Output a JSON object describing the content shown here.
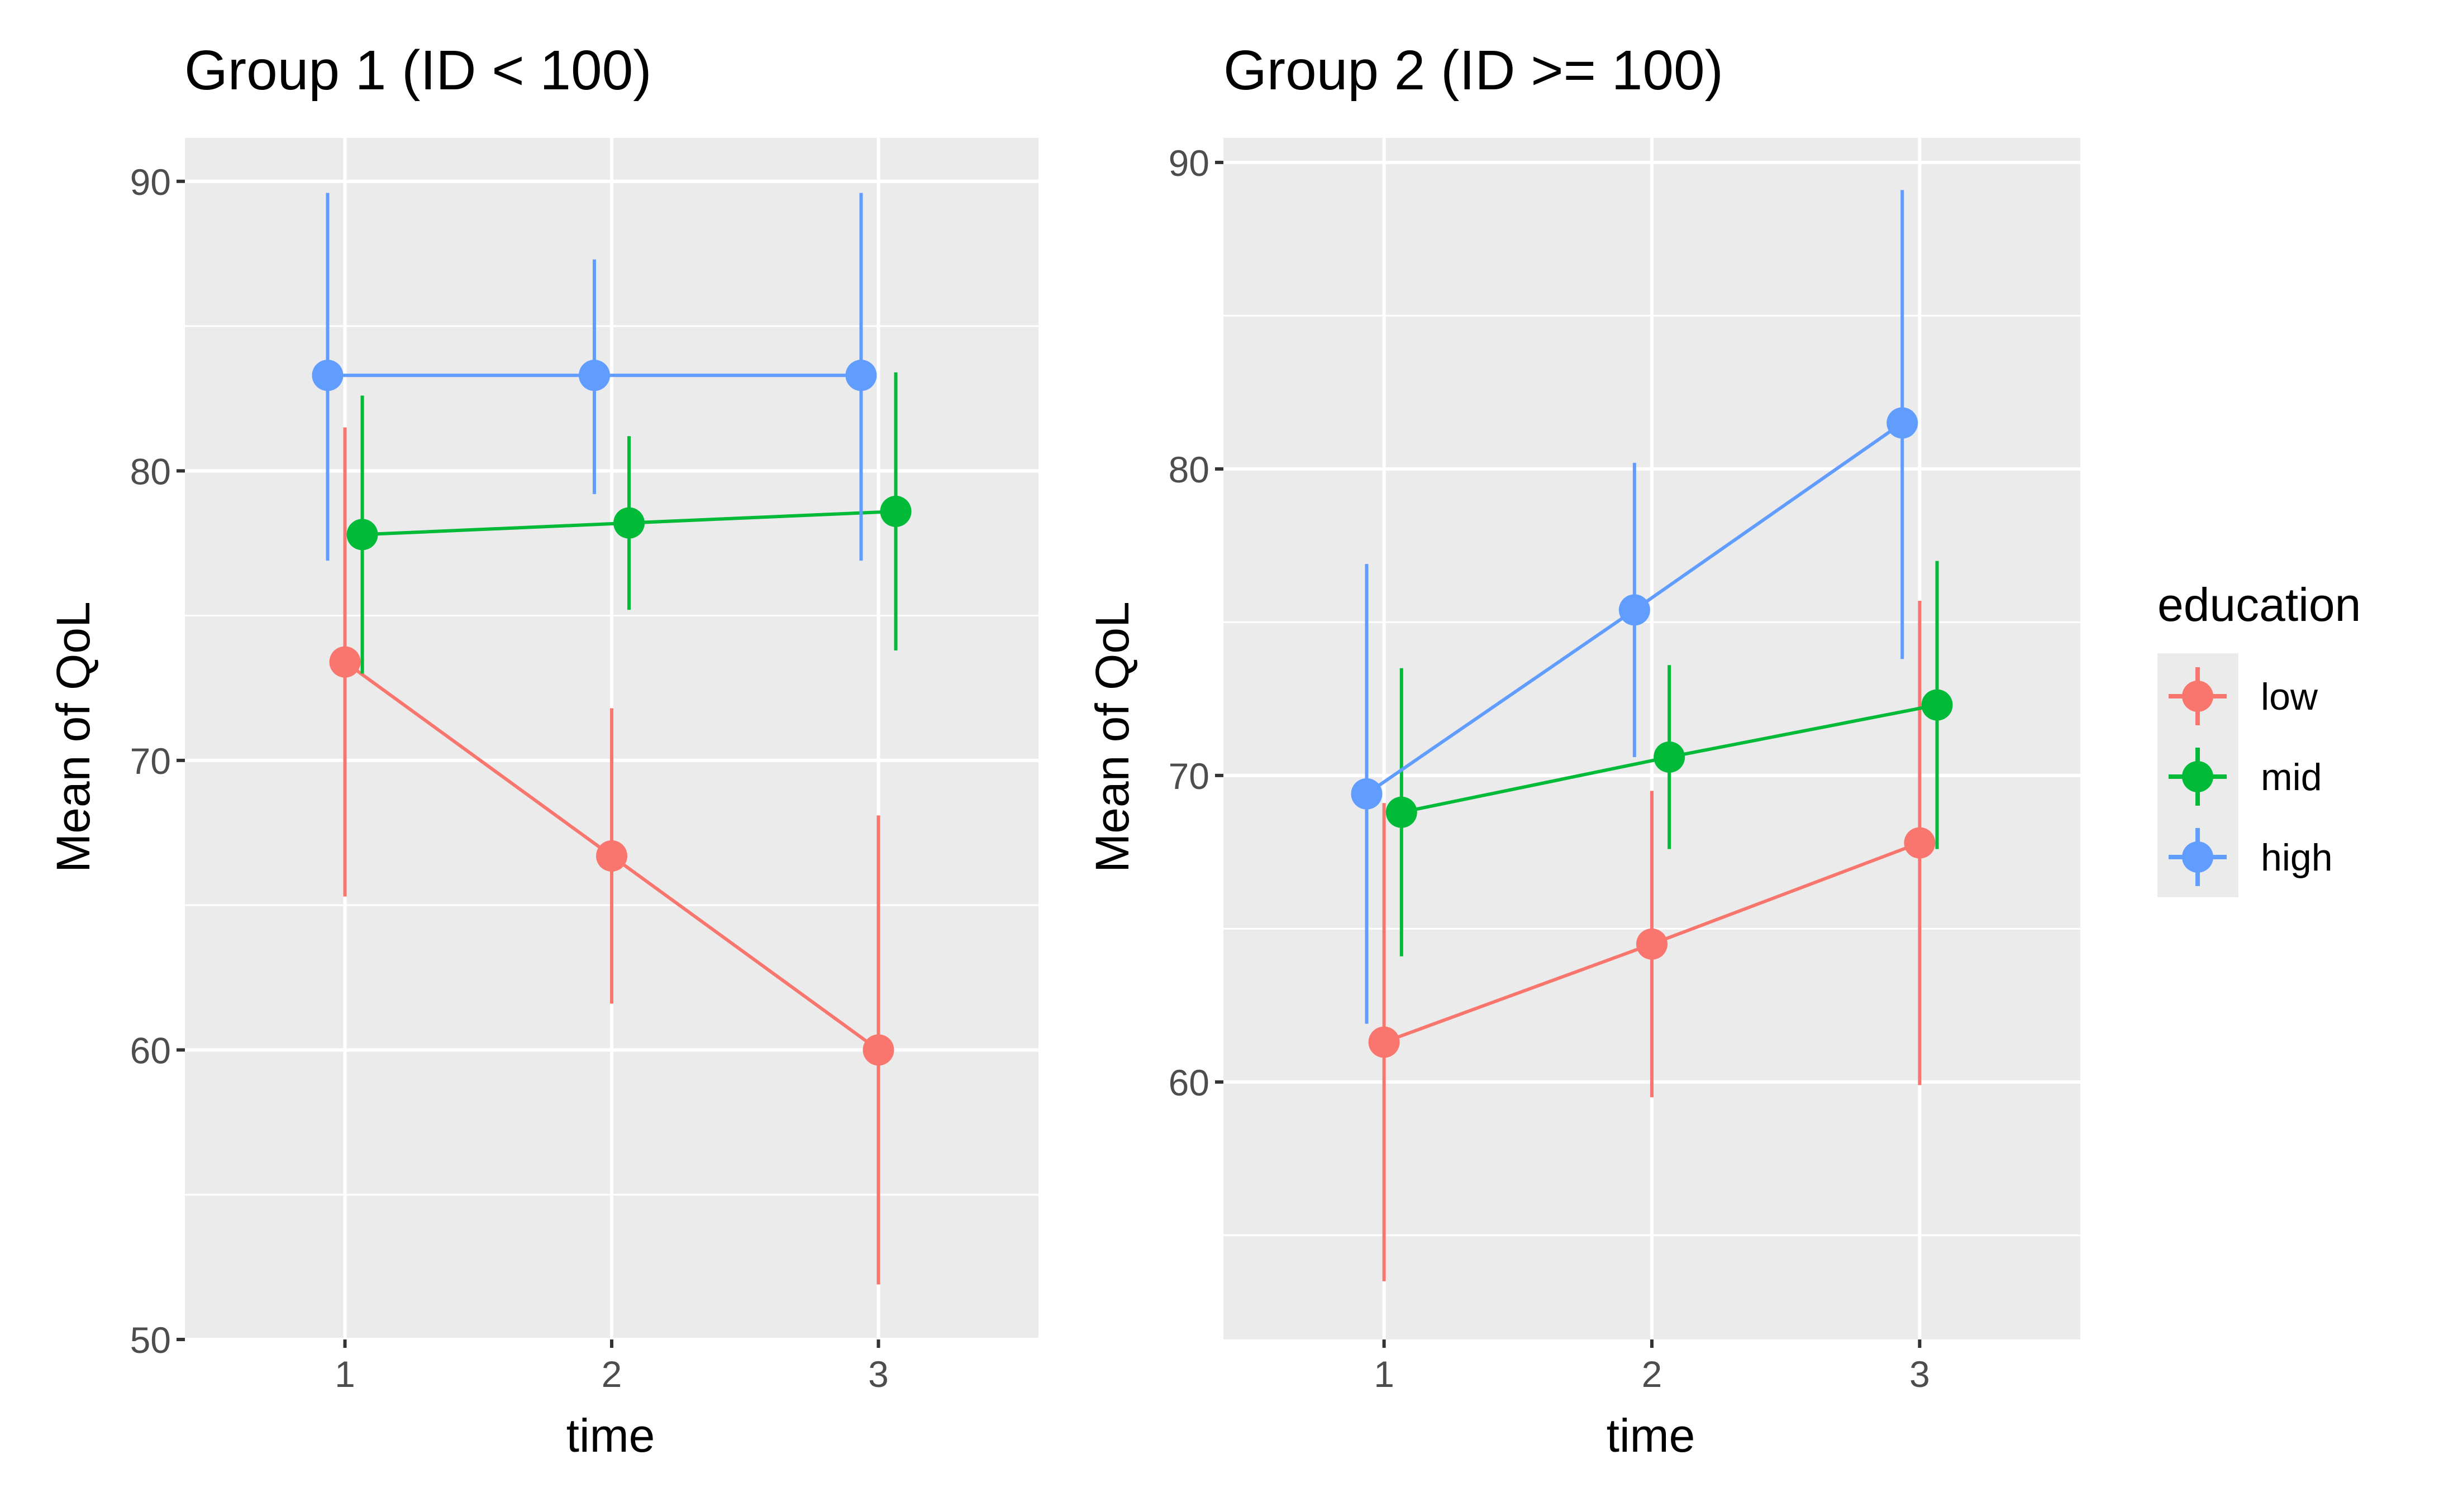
{
  "chart_data": [
    {
      "type": "line",
      "title": "Group 1 (ID < 100)",
      "xlabel": "time",
      "ylabel": "Mean of QoL",
      "x_ticks": [
        "1",
        "2",
        "3"
      ],
      "y_ticks": [
        50,
        60,
        70,
        80,
        90
      ],
      "ylim": [
        50,
        91.5
      ],
      "xlim": [
        0.4,
        3.6
      ],
      "grid": true,
      "error_bars": true,
      "series": [
        {
          "name": "low",
          "color": "#F8766D",
          "x": [
            1,
            2,
            3
          ],
          "y": [
            73.4,
            66.7,
            60.0
          ],
          "lower": [
            65.3,
            61.6,
            51.9
          ],
          "upper": [
            81.5,
            71.8,
            68.1
          ]
        },
        {
          "name": "mid",
          "color": "#00BA38",
          "x": [
            1,
            2,
            3
          ],
          "y": [
            77.8,
            78.2,
            78.6
          ],
          "lower": [
            73.0,
            75.2,
            73.8
          ],
          "upper": [
            82.6,
            81.2,
            83.4
          ]
        },
        {
          "name": "high",
          "color": "#619CFF",
          "x": [
            1,
            2,
            3
          ],
          "y": [
            83.3,
            83.3,
            83.3
          ],
          "lower": [
            76.9,
            79.2,
            76.9
          ],
          "upper": [
            89.6,
            87.3,
            89.6
          ]
        }
      ]
    },
    {
      "type": "line",
      "title": "Group 2 (ID >= 100)",
      "xlabel": "time",
      "ylabel": "Mean of QoL",
      "x_ticks": [
        "1",
        "2",
        "3"
      ],
      "y_ticks": [
        60,
        70,
        80,
        90
      ],
      "ylim": [
        51.6,
        90.8
      ],
      "xlim": [
        0.4,
        3.6
      ],
      "grid": true,
      "error_bars": true,
      "series": [
        {
          "name": "low",
          "color": "#F8766D",
          "x": [
            1,
            2,
            3
          ],
          "y": [
            61.3,
            64.5,
            67.8
          ],
          "lower": [
            53.5,
            59.5,
            59.9
          ],
          "upper": [
            69.1,
            69.5,
            75.7
          ]
        },
        {
          "name": "mid",
          "color": "#00BA38",
          "x": [
            1,
            2,
            3
          ],
          "y": [
            68.8,
            70.6,
            72.3
          ],
          "lower": [
            64.1,
            67.6,
            67.6
          ],
          "upper": [
            73.5,
            73.6,
            77.0
          ]
        },
        {
          "name": "high",
          "color": "#619CFF",
          "x": [
            1,
            2,
            3
          ],
          "y": [
            69.4,
            75.4,
            81.5
          ],
          "lower": [
            61.9,
            70.6,
            73.8
          ],
          "upper": [
            76.9,
            80.2,
            89.1
          ]
        }
      ]
    }
  ],
  "legend": {
    "title": "education",
    "position": "right",
    "items": [
      {
        "label": "low",
        "color": "#F8766D"
      },
      {
        "label": "mid",
        "color": "#00BA38"
      },
      {
        "label": "high",
        "color": "#619CFF"
      }
    ]
  }
}
